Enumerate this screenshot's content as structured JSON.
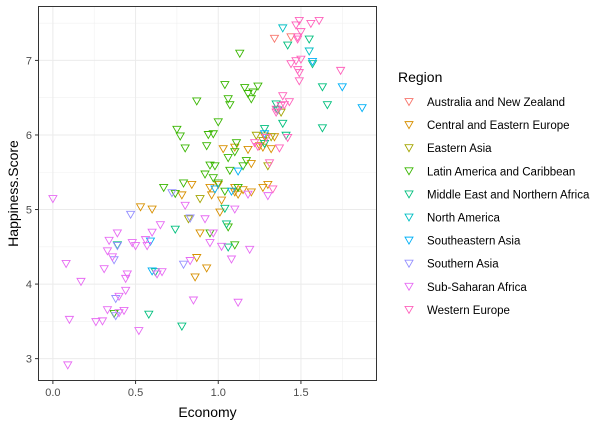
{
  "chart_data": {
    "type": "scatter",
    "xlabel": "Economy",
    "ylabel": "Happiness.Score",
    "xlim": [
      -0.09,
      1.96
    ],
    "ylim": [
      2.7,
      7.73
    ],
    "xticks": [
      0.0,
      0.5,
      1.0,
      1.5
    ],
    "xtick_labels": [
      "0.0",
      "0.5",
      "1.0",
      "1.5"
    ],
    "yticks": [
      3,
      4,
      5,
      6,
      7
    ],
    "ytick_labels": [
      "3",
      "4",
      "5",
      "6",
      "7"
    ],
    "grid": true,
    "marker": "open-triangle-down",
    "legend": {
      "title": "Region",
      "position": "right"
    },
    "series": [
      {
        "name": "Australia and New Zealand",
        "color": "#F8766D",
        "points": [
          [
            1.34,
            7.29
          ],
          [
            1.44,
            7.31
          ]
        ]
      },
      {
        "name": "Central and Eastern Europe",
        "color": "#D89000",
        "points": [
          [
            1.32,
            5.81
          ],
          [
            1.25,
            5.85
          ],
          [
            1.27,
            5.83
          ],
          [
            1.18,
            5.8
          ],
          [
            1.03,
            5.81
          ],
          [
            1.1,
            5.29
          ],
          [
            1.15,
            5.26
          ],
          [
            1.1,
            5.23
          ],
          [
            1.2,
            5.23
          ],
          [
            1.3,
            5.33
          ],
          [
            1.27,
            5.29
          ],
          [
            1.02,
            5.12
          ],
          [
            1.01,
            4.96
          ],
          [
            0.89,
            4.68
          ],
          [
            0.86,
            4.09
          ],
          [
            0.87,
            4.35
          ],
          [
            0.93,
            4.21
          ],
          [
            0.53,
            5.03
          ],
          [
            0.6,
            5.0
          ],
          [
            0.84,
            5.33
          ],
          [
            0.78,
            5.19
          ],
          [
            0.95,
            5.29
          ],
          [
            1.0,
            5.33
          ],
          [
            1.12,
            5.2
          ],
          [
            1.1,
            5.83
          ],
          [
            1.2,
            5.61
          ],
          [
            1.28,
            5.98
          ],
          [
            1.34,
            5.97
          ],
          [
            0.96,
            5.19
          ]
        ]
      },
      {
        "name": "Eastern Asia",
        "color": "#A3A500",
        "points": [
          [
            1.38,
            6.3
          ],
          [
            1.23,
            5.99
          ],
          [
            1.27,
            5.92
          ],
          [
            1.32,
            5.97
          ],
          [
            0.89,
            5.14
          ],
          [
            0.82,
            4.87
          ],
          [
            1.3,
            5.58
          ]
        ]
      },
      {
        "name": "Latin America and Caribbean",
        "color": "#39B600",
        "points": [
          [
            1.13,
            7.09
          ],
          [
            1.04,
            6.67
          ],
          [
            1.21,
            6.57
          ],
          [
            1.24,
            6.65
          ],
          [
            1.2,
            6.48
          ],
          [
            1.16,
            6.63
          ],
          [
            1.18,
            6.55
          ],
          [
            1.06,
            6.48
          ],
          [
            0.87,
            6.45
          ],
          [
            1.07,
            6.4
          ],
          [
            0.94,
            6.0
          ],
          [
            0.97,
            6.01
          ],
          [
            0.93,
            5.85
          ],
          [
            0.75,
            6.07
          ],
          [
            0.77,
            5.98
          ],
          [
            1.0,
            6.17
          ],
          [
            1.11,
            5.89
          ],
          [
            0.8,
            5.82
          ],
          [
            0.95,
            5.59
          ],
          [
            1.07,
            5.52
          ],
          [
            1.1,
            5.77
          ],
          [
            0.67,
            5.29
          ],
          [
            0.92,
            5.47
          ],
          [
            0.97,
            5.42
          ],
          [
            1.0,
            5.35
          ],
          [
            0.79,
            5.35
          ],
          [
            1.04,
            5.24
          ],
          [
            1.15,
            5.58
          ],
          [
            1.06,
            5.69
          ],
          [
            1.17,
            5.65
          ],
          [
            0.74,
            5.21
          ],
          [
            0.95,
            4.68
          ],
          [
            1.06,
            4.76
          ],
          [
            0.37,
            3.6
          ],
          [
            1.1,
            4.52
          ],
          [
            1.12,
            5.29
          ],
          [
            0.98,
            5.58
          ]
        ]
      },
      {
        "name": "Middle East and Northern Africa",
        "color": "#00BF7D",
        "points": [
          [
            1.55,
            7.28
          ],
          [
            1.42,
            7.2
          ],
          [
            1.57,
            6.95
          ],
          [
            1.63,
            6.64
          ],
          [
            1.66,
            6.4
          ],
          [
            1.63,
            6.09
          ],
          [
            1.36,
            6.33
          ],
          [
            1.39,
            6.15
          ],
          [
            1.41,
            5.99
          ],
          [
            1.28,
            5.88
          ],
          [
            1.04,
            5.01
          ],
          [
            1.06,
            4.49
          ],
          [
            1.05,
            4.8
          ],
          [
            0.74,
            4.73
          ],
          [
            0.58,
            3.59
          ],
          [
            0.78,
            3.43
          ],
          [
            0.62,
            4.16
          ],
          [
            0.39,
            4.52
          ],
          [
            1.35,
            6.41
          ],
          [
            1.28,
            6.08
          ]
        ]
      },
      {
        "name": "North America",
        "color": "#00BFC4",
        "points": [
          [
            1.39,
            7.43
          ],
          [
            1.55,
            7.12
          ]
        ]
      },
      {
        "name": "Southeastern Asia",
        "color": "#00B0F6",
        "points": [
          [
            1.87,
            6.36
          ],
          [
            1.75,
            6.64
          ],
          [
            1.28,
            6.01
          ],
          [
            1.12,
            5.51
          ],
          [
            1.08,
            5.24
          ],
          [
            0.98,
            5.27
          ],
          [
            0.59,
            4.57
          ],
          [
            0.6,
            4.17
          ],
          [
            1.57,
            6.98
          ]
        ]
      },
      {
        "name": "Southern Asia",
        "color": "#9590FF",
        "points": [
          [
            0.83,
            4.88
          ],
          [
            0.47,
            4.93
          ],
          [
            0.39,
            4.51
          ],
          [
            0.38,
            3.8
          ],
          [
            0.37,
            4.32
          ],
          [
            0.38,
            3.57
          ],
          [
            0.79,
            4.26
          ],
          [
            0.72,
            5.22
          ]
        ]
      },
      {
        "name": "Sub-Saharan Africa",
        "color": "#E76BF3",
        "points": [
          [
            0.0,
            5.14
          ],
          [
            0.08,
            4.27
          ],
          [
            0.1,
            3.52
          ],
          [
            0.17,
            4.03
          ],
          [
            0.26,
            3.49
          ],
          [
            0.3,
            3.5
          ],
          [
            0.33,
            3.65
          ],
          [
            0.4,
            3.61
          ],
          [
            0.43,
            3.64
          ],
          [
            0.44,
            3.91
          ],
          [
            0.45,
            4.13
          ],
          [
            0.31,
            4.2
          ],
          [
            0.36,
            4.36
          ],
          [
            0.39,
            4.68
          ],
          [
            0.5,
            4.51
          ],
          [
            0.56,
            4.59
          ],
          [
            0.57,
            4.51
          ],
          [
            0.6,
            4.69
          ],
          [
            0.63,
            4.13
          ],
          [
            0.66,
            4.16
          ],
          [
            0.44,
            4.07
          ],
          [
            0.4,
            3.83
          ],
          [
            0.33,
            4.44
          ],
          [
            0.83,
            4.31
          ],
          [
            0.95,
            4.55
          ],
          [
            0.97,
            4.68
          ],
          [
            1.02,
            4.5
          ],
          [
            1.08,
            4.33
          ],
          [
            1.1,
            5.0
          ],
          [
            1.18,
            5.2
          ],
          [
            0.85,
            3.78
          ],
          [
            1.12,
            3.75
          ],
          [
            1.19,
            4.46
          ],
          [
            0.52,
            3.37
          ],
          [
            0.09,
            2.91
          ],
          [
            0.8,
            5.05
          ],
          [
            0.65,
            4.79
          ],
          [
            0.34,
            4.58
          ],
          [
            1.3,
            5.18
          ],
          [
            0.92,
            4.87
          ],
          [
            0.48,
            4.55
          ]
        ]
      },
      {
        "name": "Western Europe",
        "color": "#FF62BC",
        "points": [
          [
            1.49,
            7.53
          ],
          [
            1.47,
            7.47
          ],
          [
            1.61,
            7.53
          ],
          [
            1.56,
            7.49
          ],
          [
            1.5,
            7.38
          ],
          [
            1.48,
            7.31
          ],
          [
            1.48,
            7.28
          ],
          [
            1.5,
            7.01
          ],
          [
            1.47,
            6.99
          ],
          [
            1.44,
            6.95
          ],
          [
            1.48,
            6.87
          ],
          [
            1.74,
            6.86
          ],
          [
            1.49,
            6.83
          ],
          [
            1.49,
            6.72
          ],
          [
            1.39,
            6.52
          ],
          [
            1.43,
            6.44
          ],
          [
            1.4,
            6.4
          ],
          [
            1.38,
            6.39
          ],
          [
            1.35,
            6.34
          ],
          [
            1.35,
            6.3
          ],
          [
            1.29,
            5.96
          ],
          [
            1.37,
            5.82
          ],
          [
            1.24,
            5.84
          ],
          [
            1.42,
            5.96
          ],
          [
            1.31,
            5.62
          ],
          [
            1.33,
            5.27
          ],
          [
            1.22,
            5.89
          ]
        ]
      }
    ]
  }
}
